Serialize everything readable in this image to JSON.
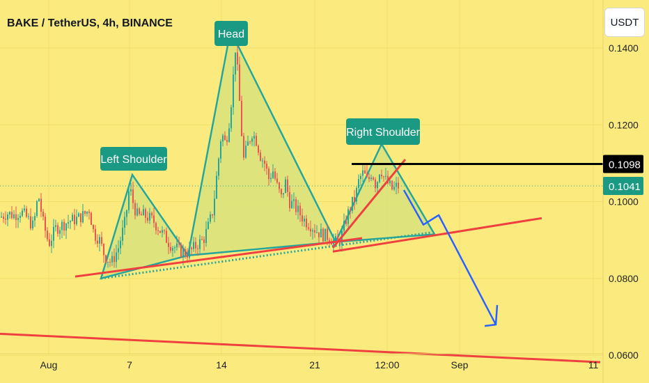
{
  "header": {
    "title": "BAKE / TetherUS, 4h, BINANCE"
  },
  "currency_button": {
    "label": "USDT"
  },
  "colors": {
    "background": "#fbeb7e",
    "candle_up": "#26a69a",
    "candle_down": "#ef5350",
    "pattern_stroke": "#26a69a",
    "pattern_fill": "#d9e27a",
    "trendline_red": "#ef4040",
    "projection_blue": "#2962ff",
    "resistance_black": "#000000",
    "label_bg": "#1a9a82"
  },
  "chart_data": {
    "type": "candlestick",
    "ylim": [
      0.0575,
      0.1525
    ],
    "y_ticks": [
      "0.1400",
      "0.1200",
      "0.1000",
      "0.0800",
      "0.0600"
    ],
    "x_ticks": [
      "Aug",
      "7",
      "14",
      "21",
      "12:00",
      "Sep",
      "11"
    ],
    "annotations": [
      "Left Shoulder",
      "Head",
      "Right Shoulder"
    ],
    "price_lines": [
      {
        "label": "0.1098",
        "value": 0.1098
      },
      {
        "label": "0.1041",
        "value": 0.1041
      }
    ],
    "key_points": [
      {
        "name": "left-shoulder-peak",
        "price": 0.107
      },
      {
        "name": "head-peak",
        "price": 0.1445
      },
      {
        "name": "right-shoulder-peak",
        "price": 0.115
      },
      {
        "name": "left-trough",
        "price": 0.081
      },
      {
        "name": "neckline-low",
        "price": 0.089
      }
    ],
    "series_points": [
      [
        1,
        0.096
      ],
      [
        10,
        0.097
      ],
      [
        20,
        0.0965
      ],
      [
        30,
        0.0975
      ],
      [
        40,
        0.0955
      ],
      [
        48,
        0.0935
      ],
      [
        55,
        0.102
      ],
      [
        62,
        0.0945
      ],
      [
        70,
        0.089
      ],
      [
        80,
        0.093
      ],
      [
        90,
        0.094
      ],
      [
        100,
        0.095
      ],
      [
        110,
        0.0955
      ],
      [
        120,
        0.0965
      ],
      [
        128,
        0.098
      ],
      [
        135,
        0.0915
      ],
      [
        142,
        0.0905
      ],
      [
        150,
        0.086
      ],
      [
        160,
        0.084
      ],
      [
        170,
        0.088
      ],
      [
        180,
        0.095
      ],
      [
        186,
        0.104
      ],
      [
        192,
        0.099
      ],
      [
        198,
        0.096
      ],
      [
        205,
        0.0965
      ],
      [
        212,
        0.096
      ],
      [
        220,
        0.095
      ],
      [
        228,
        0.093
      ],
      [
        236,
        0.091
      ],
      [
        244,
        0.089
      ],
      [
        252,
        0.088
      ],
      [
        260,
        0.087
      ],
      [
        268,
        0.0865
      ],
      [
        276,
        0.0875
      ],
      [
        284,
        0.089
      ],
      [
        292,
        0.09
      ],
      [
        300,
        0.094
      ],
      [
        306,
        0.098
      ],
      [
        312,
        0.108
      ],
      [
        318,
        0.118
      ],
      [
        324,
        0.115
      ],
      [
        330,
        0.122
      ],
      [
        334,
        0.13
      ],
      [
        338,
        0.14
      ],
      [
        342,
        0.132
      ],
      [
        346,
        0.12
      ],
      [
        350,
        0.111
      ],
      [
        356,
        0.115
      ],
      [
        362,
        0.118
      ],
      [
        368,
        0.116
      ],
      [
        374,
        0.112
      ],
      [
        380,
        0.11
      ],
      [
        386,
        0.106
      ],
      [
        392,
        0.108
      ],
      [
        398,
        0.104
      ],
      [
        404,
        0.101
      ],
      [
        410,
        0.105
      ],
      [
        416,
        0.1
      ],
      [
        422,
        0.099
      ],
      [
        430,
        0.097
      ],
      [
        438,
        0.095
      ],
      [
        446,
        0.094
      ],
      [
        454,
        0.0925
      ],
      [
        462,
        0.0915
      ],
      [
        470,
        0.091
      ],
      [
        478,
        0.09
      ],
      [
        486,
        0.089
      ],
      [
        492,
        0.092
      ],
      [
        498,
        0.096
      ],
      [
        504,
        0.099
      ],
      [
        510,
        0.101
      ],
      [
        516,
        0.106
      ],
      [
        522,
        0.1075
      ],
      [
        528,
        0.105
      ],
      [
        534,
        0.108
      ],
      [
        540,
        0.104
      ],
      [
        546,
        0.109
      ],
      [
        552,
        0.106
      ],
      [
        558,
        0.1045
      ],
      [
        564,
        0.103
      ],
      [
        570,
        0.1041
      ],
      [
        574,
        0.1038
      ]
    ],
    "overlays": {
      "neckline_red": [
        [
          108,
          0.0805
        ],
        [
          520,
          0.0905
        ]
      ],
      "lower_trend_red": [
        [
          0,
          0.0656
        ],
        [
          862,
          0.0582
        ]
      ],
      "upper_trend_red": [
        [
          478,
          0.087
        ],
        [
          778,
          0.0957
        ]
      ],
      "breakdown_red": [
        [
          478,
          0.088
        ],
        [
          582,
          0.111
        ]
      ],
      "dotted_neckline": [
        [
          145,
          0.08
        ],
        [
          620,
          0.092
        ]
      ],
      "left_shoulder": [
        [
          145,
          0.08
        ],
        [
          190,
          0.107
        ],
        [
          270,
          0.086
        ]
      ],
      "head": [
        [
          270,
          0.086
        ],
        [
          331,
          0.1445
        ],
        [
          482,
          0.0895
        ]
      ],
      "right_shoulder": [
        [
          482,
          0.0895
        ],
        [
          548,
          0.115
        ],
        [
          624,
          0.0915
        ]
      ],
      "projection_blue": [
        [
          580,
          0.103
        ],
        [
          608,
          0.094
        ],
        [
          630,
          0.0965
        ],
        [
          712,
          0.068
        ]
      ],
      "resistance_black": [
        [
          505,
          0.1098
        ],
        [
          866,
          0.1098
        ]
      ]
    }
  }
}
